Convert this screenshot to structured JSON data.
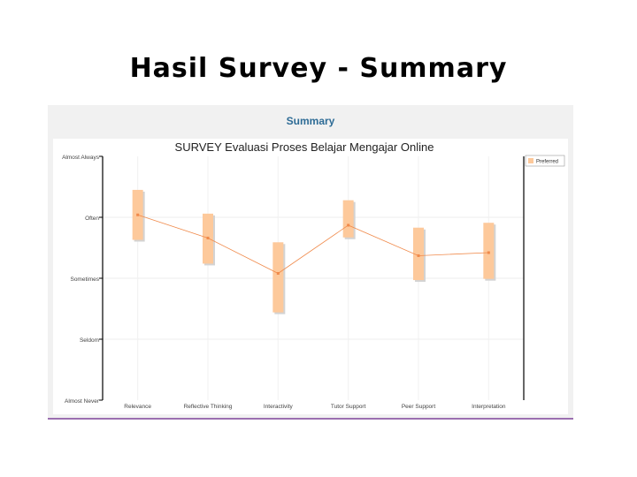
{
  "slide": {
    "title": "Hasil Survey - Summary"
  },
  "panel": {
    "heading": "Summary"
  },
  "colors": {
    "box_fill": "#fdc99b",
    "line": "#f08a4b",
    "axis": "#000000",
    "heading": "#2e6c96",
    "panel_border": "#9b6fb0"
  },
  "chart_data": {
    "type": "line",
    "title": "SURVEY Evaluasi Proses Belajar Mengajar Online",
    "xlabel": "",
    "ylabel": "",
    "y_tick_labels": [
      "Almost Never",
      "Seldom",
      "Sometimes",
      "Often",
      "Almost Always"
    ],
    "ylim": [
      1,
      5
    ],
    "categories": [
      "Relevance",
      "Reflective Thinking",
      "Interactivity",
      "Tutor Support",
      "Peer Support",
      "Interpretation"
    ],
    "series": [
      {
        "name": "Preferred",
        "values": [
          4.04,
          3.66,
          3.08,
          3.87,
          3.37,
          3.42
        ]
      }
    ],
    "ranges": [
      {
        "low": 3.63,
        "high": 4.45
      },
      {
        "low": 3.24,
        "high": 4.06
      },
      {
        "low": 2.44,
        "high": 3.59
      },
      {
        "low": 3.67,
        "high": 4.28
      },
      {
        "low": 2.97,
        "high": 3.83
      },
      {
        "low": 2.99,
        "high": 3.91
      }
    ],
    "legend": {
      "position": "top-right",
      "entries": [
        "Preferred"
      ]
    },
    "grid": true
  }
}
